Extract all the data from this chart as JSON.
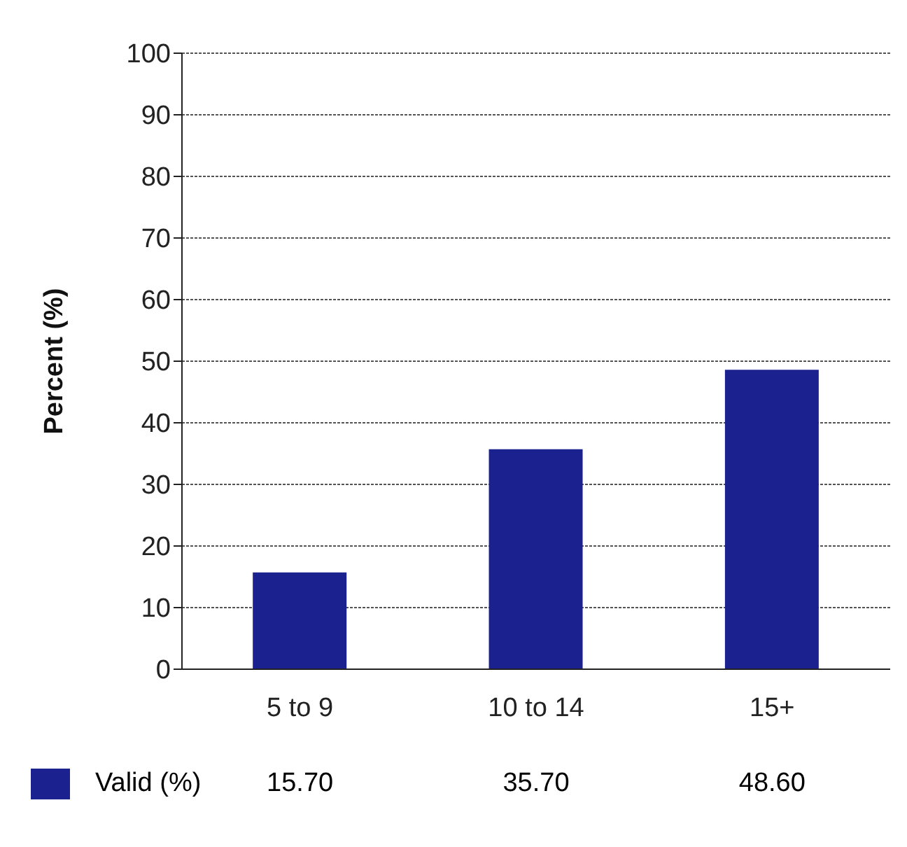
{
  "chart_data": {
    "type": "bar",
    "ylabel": "Percent (%)",
    "categories": [
      "5 to 9",
      "10 to 14",
      "15+"
    ],
    "series": [
      {
        "name": "Valid (%)",
        "color": "#1c2190",
        "values": [
          15.7,
          35.7,
          48.6
        ],
        "value_labels": [
          "15.70",
          "35.70",
          "48.60"
        ]
      }
    ],
    "ylim": [
      0,
      100
    ],
    "yticks": [
      0,
      10,
      20,
      30,
      40,
      50,
      60,
      70,
      80,
      90,
      100
    ],
    "grid": "y",
    "legend": "bottom"
  }
}
